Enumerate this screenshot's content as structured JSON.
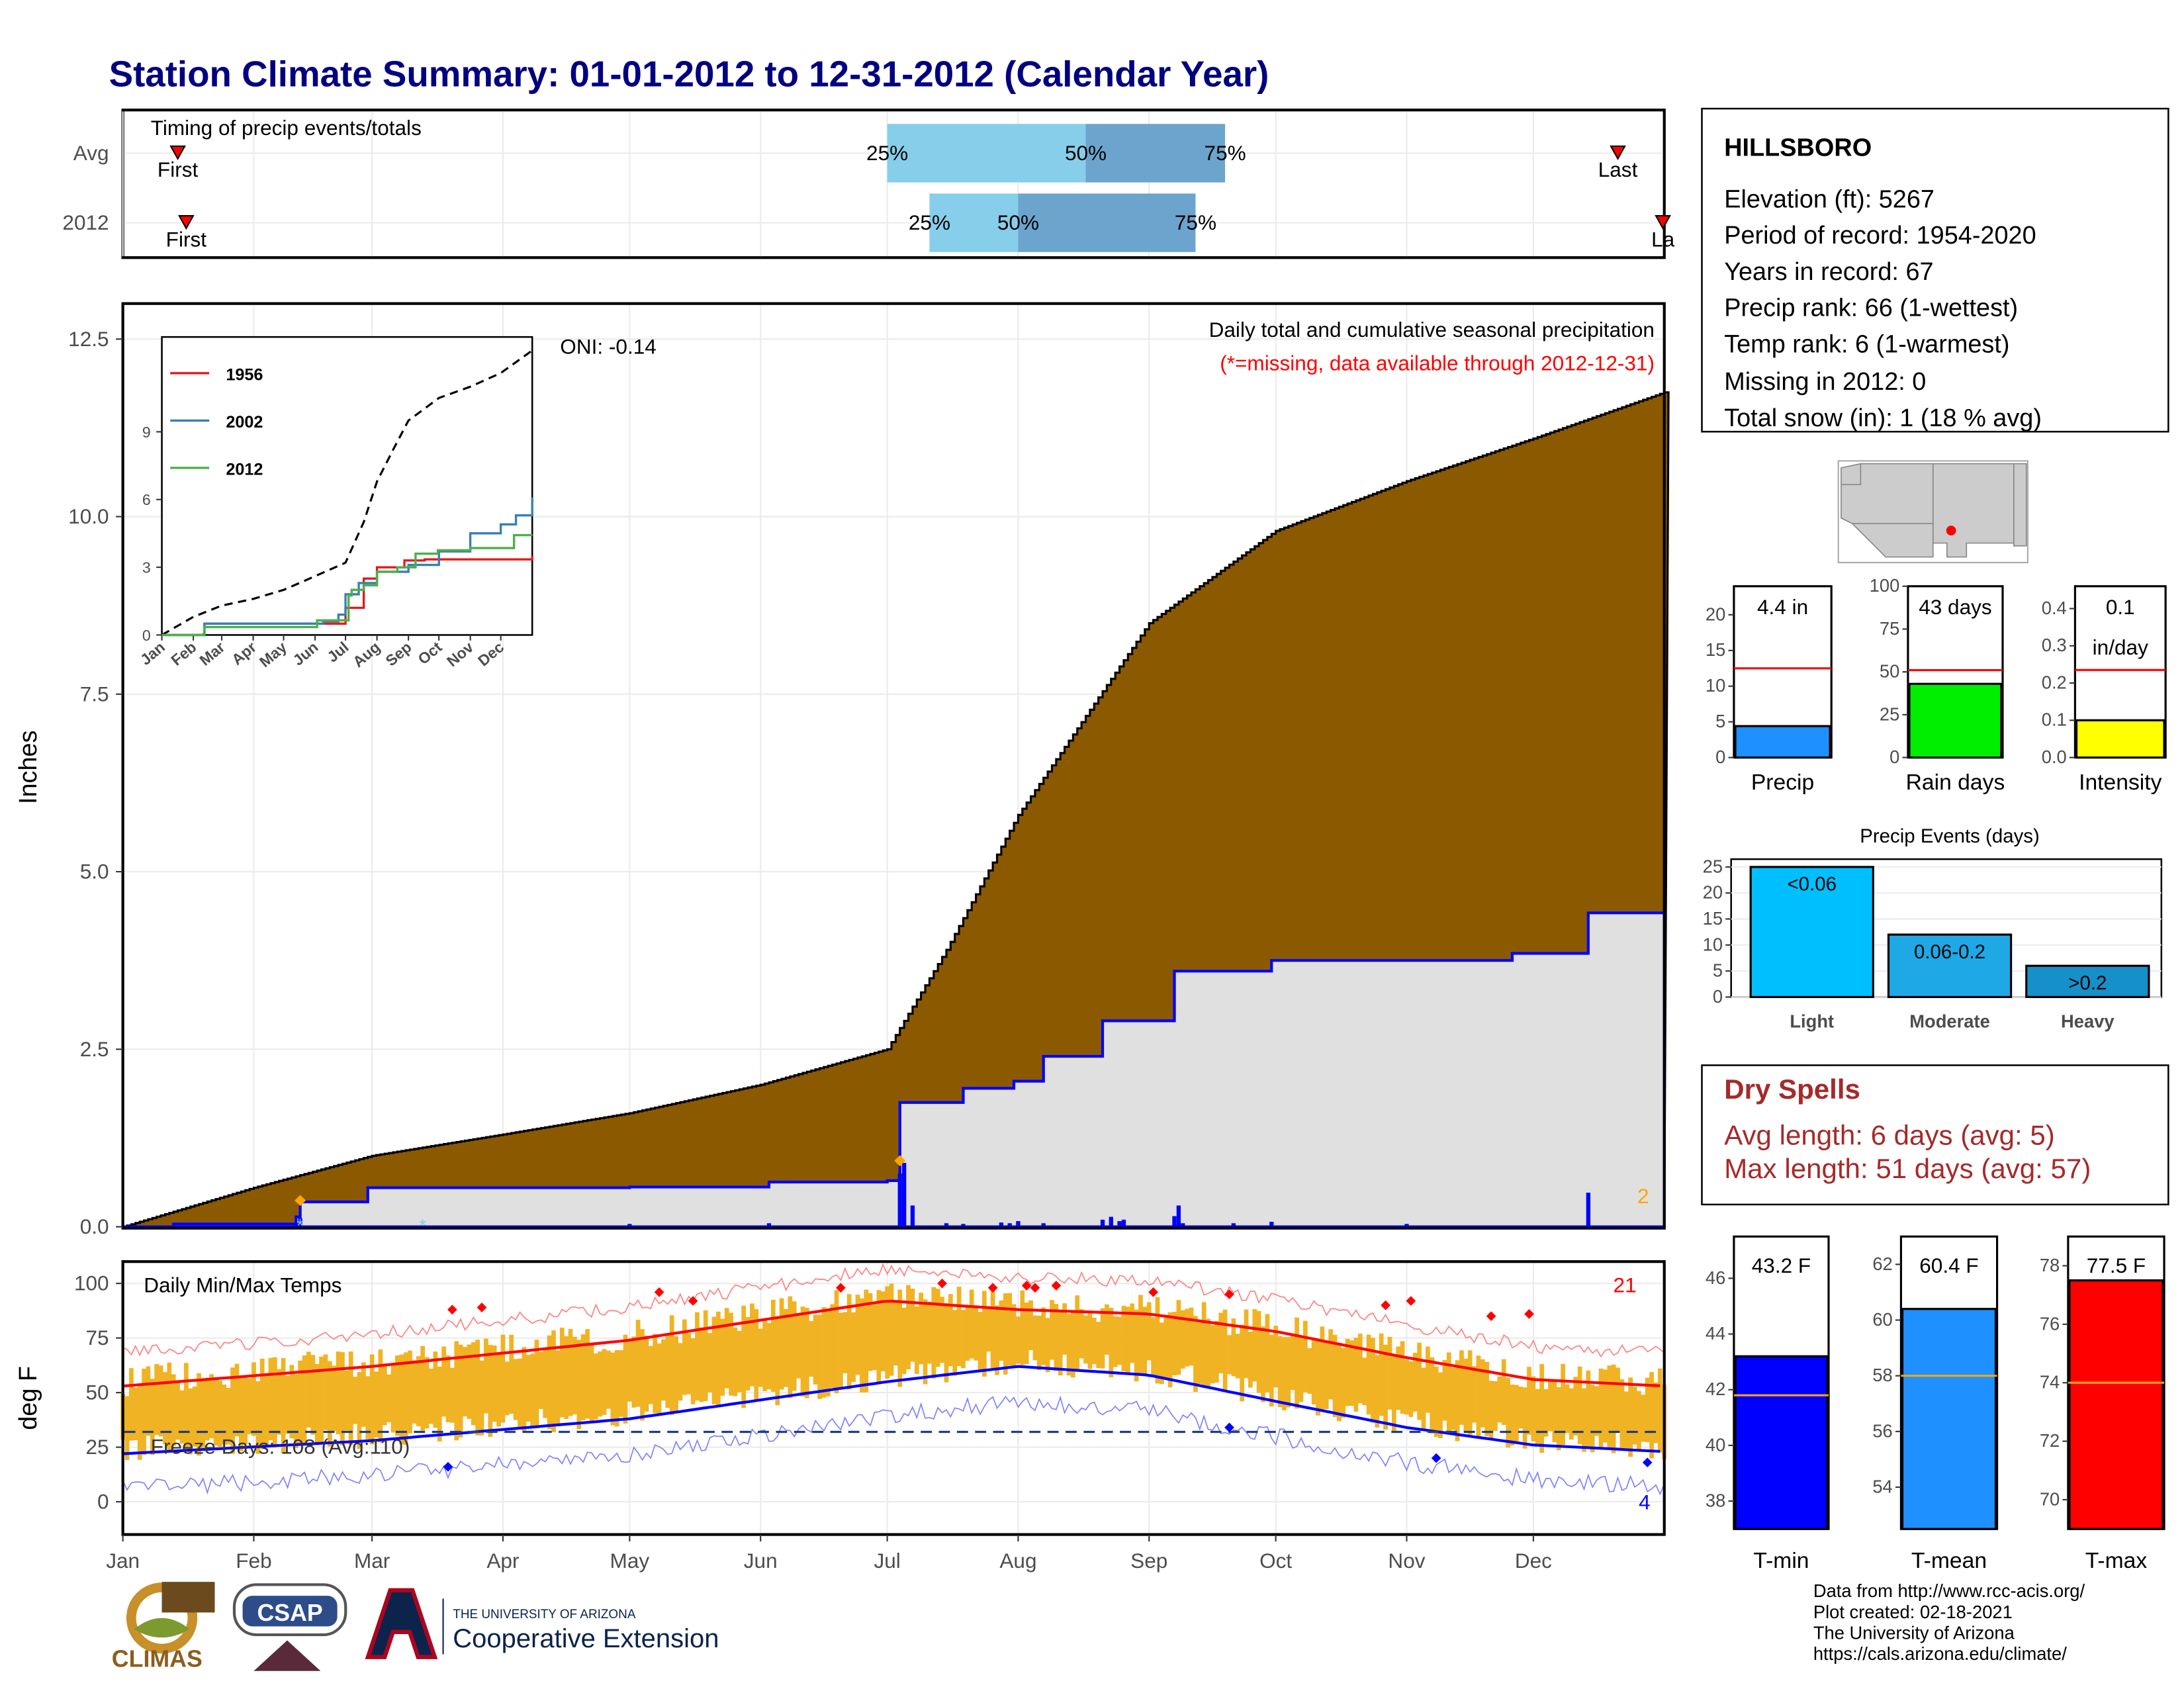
{
  "title": "Station Climate Summary: 01-01-2012 to 12-31-2012 (Calendar Year)",
  "timing": {
    "label": "Timing of precip events/totals",
    "rows": [
      {
        "name": "Avg",
        "first_label": "First",
        "last_label": "Last",
        "p25_label": "25%",
        "p50_label": "50%",
        "p75_label": "75%",
        "first_day": 14,
        "last_day": 355,
        "p25_day": 182,
        "p50_day": 229,
        "p75_day": 262
      },
      {
        "name": "2012",
        "first_label": "First",
        "last_label": "La",
        "p25_label": "25%",
        "p50_label": "50%",
        "p75_label": "75%",
        "first_day": 16,
        "last_day": 366,
        "p25_day": 192,
        "p50_day": 213,
        "p75_day": 255
      }
    ],
    "colors": {
      "light": "#87CEEB",
      "dark": "#6BA5CE"
    }
  },
  "precip_panel": {
    "ylabel": "Inches",
    "yticks": [
      "0.0",
      "2.5",
      "5.0",
      "7.5",
      "10.0",
      "12.5"
    ],
    "header": "Daily total and cumulative seasonal precipitation",
    "missing_note": "(*=missing, data available through 2012-12-31)",
    "corner_count": "2",
    "oni": "ONI: -0.14"
  },
  "inset": {
    "yticks": [
      "0",
      "3",
      "6",
      "9"
    ],
    "xticks": [
      "Jan",
      "Feb",
      "Mar",
      "Apr",
      "May",
      "Jun",
      "Jul",
      "Aug",
      "Sep",
      "Oct",
      "Nov",
      "Dec"
    ],
    "legend": [
      {
        "name": "1956",
        "color": "#E41A1C"
      },
      {
        "name": "2002",
        "color": "#377EB8"
      },
      {
        "name": "2012",
        "color": "#4DAF4A"
      }
    ]
  },
  "temp_panel": {
    "ylabel": "deg F",
    "yticks": [
      "0",
      "25",
      "50",
      "75",
      "100"
    ],
    "label": "Daily Min/Max Temps",
    "freeze": "Freeze Days: 108 (Avg:110)",
    "hot_count": "21",
    "cold_count": "4"
  },
  "months": [
    "Jan",
    "Feb",
    "Mar",
    "Apr",
    "May",
    "Jun",
    "Jul",
    "Aug",
    "Sep",
    "Oct",
    "Nov",
    "Dec"
  ],
  "station": {
    "name": "HILLSBORO",
    "lines": [
      "Elevation (ft): 5267",
      "Period of record: 1954-2020",
      "Years in record: 67",
      "Precip rank: 66 (1-wettest)",
      "Temp rank: 6 (1-warmest)",
      "Missing in 2012: 0",
      "Total snow (in): 1 (18 % avg)"
    ]
  },
  "mini_bars": [
    {
      "label": "Precip",
      "value_label": "4.4 in",
      "value": 4.4,
      "avg": 12.5,
      "ymax": 24,
      "yticks": [
        "0",
        "5",
        "10",
        "15",
        "20"
      ],
      "color": "#1E90FF"
    },
    {
      "label": "Rain days",
      "value_label": "43 days",
      "value": 43,
      "avg": 51,
      "ymax": 100,
      "yticks": [
        "0",
        "25",
        "50",
        "75",
        "100"
      ],
      "color": "#00EE00"
    },
    {
      "label": "Intensity",
      "value_label": "0.1",
      "value_label2": "in/day",
      "value": 0.1,
      "avg": 0.235,
      "ymax": 0.46,
      "yticks": [
        "0.0",
        "0.1",
        "0.2",
        "0.3",
        "0.4"
      ],
      "color": "#FFFF00"
    }
  ],
  "precip_events": {
    "title": "Precip Events (days)",
    "yticks": [
      "0",
      "5",
      "10",
      "15",
      "20",
      "25"
    ],
    "bars": [
      {
        "label": "Light",
        "value_label": "<0.06",
        "value": 25,
        "color": "#00BFFF"
      },
      {
        "label": "Moderate",
        "value_label": "0.06-0.2",
        "value": 12,
        "color": "#1EA8E6"
      },
      {
        "label": "Heavy",
        "value_label": ">0.2",
        "value": 6,
        "color": "#1590C8"
      }
    ]
  },
  "dry_spells": {
    "title": "Dry Spells",
    "avg": "Avg length: 6 days (avg: 5)",
    "max": "Max length: 51 days (avg: 57)",
    "color": "#A52A2A"
  },
  "temp_bars": [
    {
      "label": "T-min",
      "value_label": "43.2 F",
      "value": 43.2,
      "avg": 41.8,
      "ymin": 37,
      "ymax": 47.5,
      "yticks": [
        "38",
        "40",
        "42",
        "44",
        "46"
      ],
      "color": "#0000FF"
    },
    {
      "label": "T-mean",
      "value_label": "60.4 F",
      "value": 60.4,
      "avg": 58,
      "ymin": 52.5,
      "ymax": 63,
      "yticks": [
        "54",
        "56",
        "58",
        "60",
        "62"
      ],
      "color": "#1E90FF"
    },
    {
      "label": "T-max",
      "value_label": "77.5 F",
      "value": 77.5,
      "avg": 74,
      "ymin": 69,
      "ymax": 79,
      "yticks": [
        "70",
        "72",
        "74",
        "76",
        "78"
      ],
      "color": "#FF0000"
    }
  ],
  "footer": [
    "Data from http://www.rcc-acis.org/",
    "Plot created: 02-18-2021",
    "The University of Arizona",
    "https://cals.arizona.edu/climate/"
  ],
  "logos": {
    "climas": "CLIMAS",
    "csap": "CSAP",
    "ua_small": "THE UNIVERSITY OF ARIZONA",
    "coop": "Cooperative Extension"
  },
  "chart_data": [
    {
      "type": "area",
      "name": "cumulative precipitation",
      "x_unit": "day of year",
      "y_unit": "inches",
      "ylim": [
        0,
        13
      ],
      "avg_cumulative": {
        "x": [
          1,
          32,
          60,
          91,
          121,
          152,
          182,
          196,
          213,
          244,
          274,
          305,
          335,
          366
        ],
        "y": [
          0,
          0.55,
          1.0,
          1.3,
          1.6,
          2.0,
          2.5,
          3.9,
          5.8,
          8.5,
          9.8,
          10.5,
          11.1,
          11.75
        ]
      },
      "year_2012_cumulative": {
        "x": [
          1,
          13,
          27,
          42,
          43,
          58,
          59,
          121,
          154,
          182,
          185,
          200,
          212,
          219,
          229,
          233,
          250,
          264,
          273,
          330,
          348,
          366
        ],
        "y": [
          0,
          0.04,
          0.04,
          0.14,
          0.35,
          0.35,
          0.55,
          0.56,
          0.63,
          0.65,
          1.75,
          1.95,
          2.05,
          2.4,
          2.4,
          2.9,
          3.6,
          3.6,
          3.75,
          3.85,
          4.42,
          4.42
        ]
      }
    },
    {
      "type": "line",
      "name": "daily temperatures",
      "y_unit": "deg F",
      "ylim": [
        -15,
        110
      ],
      "normal_max": {
        "x": [
          1,
          60,
          121,
          182,
          213,
          244,
          274,
          305,
          335,
          366
        ],
        "y": [
          53,
          62,
          74,
          92,
          88,
          86,
          78,
          66,
          56,
          53
        ]
      },
      "normal_min": {
        "x": [
          1,
          60,
          121,
          182,
          213,
          244,
          274,
          305,
          335,
          366
        ],
        "y": [
          22,
          28,
          38,
          55,
          62,
          58,
          46,
          34,
          26,
          23
        ]
      },
      "freeze_line": 32
    }
  ]
}
